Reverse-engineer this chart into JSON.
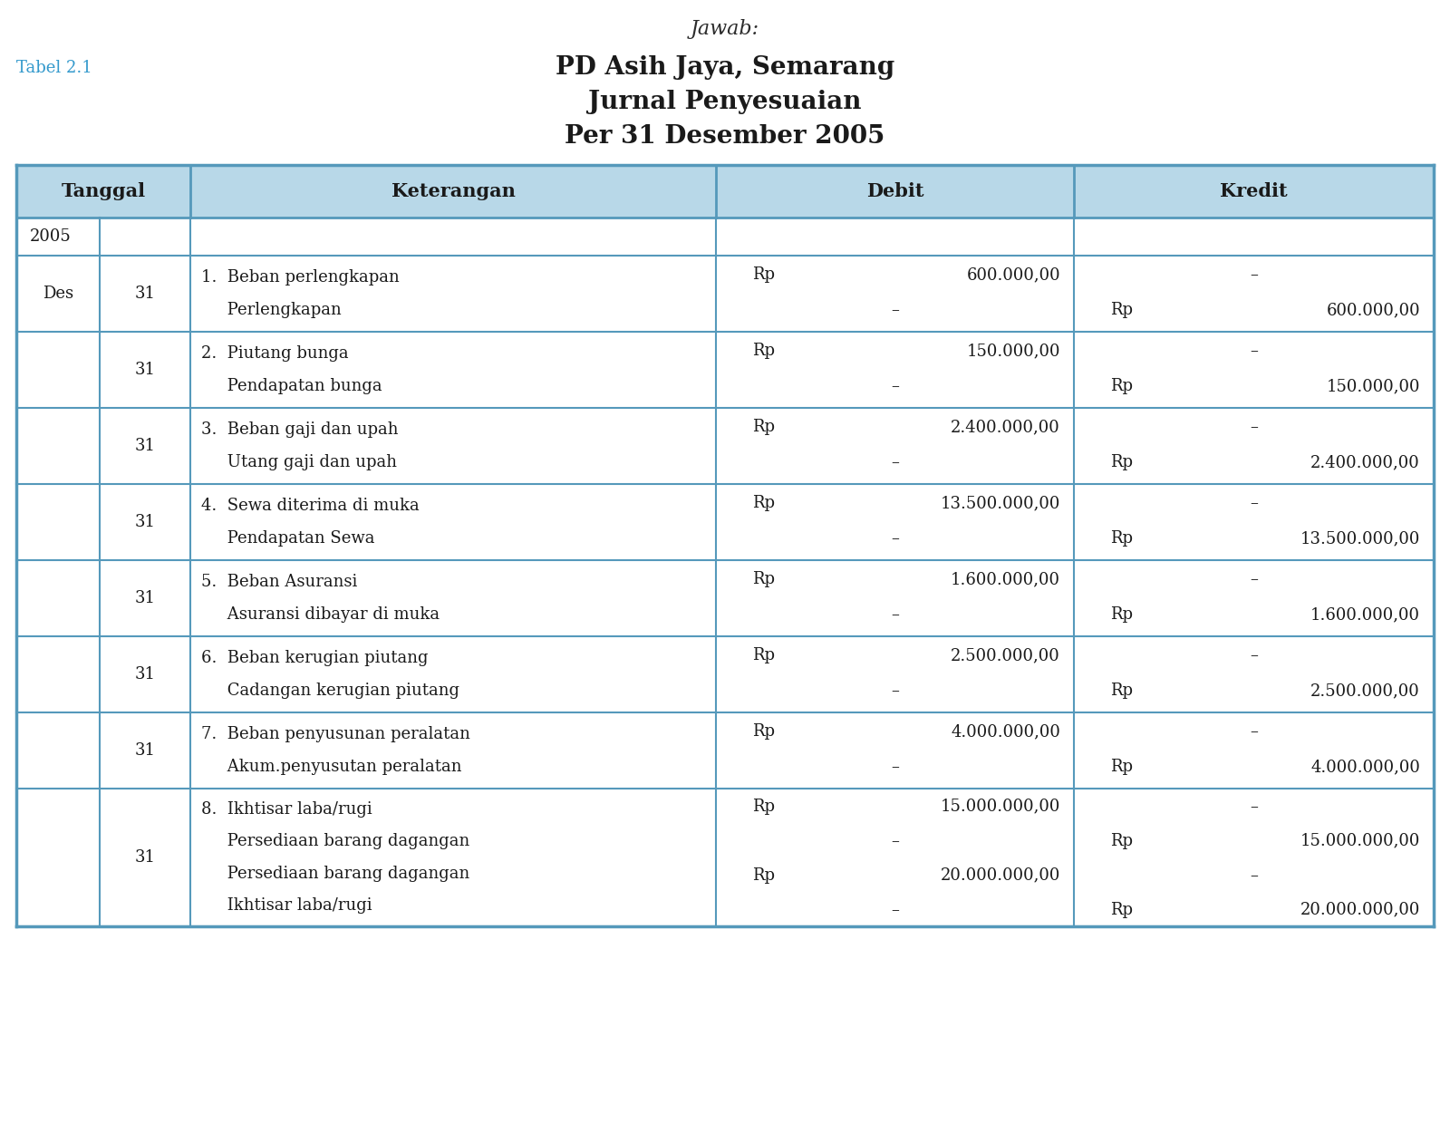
{
  "title_jawab": "Jawab:",
  "tabel_label": "Tabel 2.1",
  "title_company": "PD Asih Jaya, Semarang",
  "title_journal": "Jurnal Penyesuaian",
  "title_date": "Per 31 Desember 2005",
  "header_bg_color": "#b8d8e8",
  "table_border_color": "#5599bb",
  "tabel_label_color": "#3399cc",
  "col_headers": [
    "Tanggal",
    "Keterangan",
    "Debit",
    "Kredit"
  ],
  "rows": [
    {
      "type": "year",
      "year": "2005"
    },
    {
      "type": "data",
      "lines": [
        "1.  Beban perlengkapan",
        "     Perlengkapan"
      ],
      "tanggal1": "Des",
      "tanggal2": "31",
      "debit_lines": [
        "Rp",
        "600.000,00",
        "–"
      ],
      "kredit_lines": [
        "–",
        "Rp",
        "600.000,00"
      ]
    },
    {
      "type": "data",
      "lines": [
        "2.  Piutang bunga",
        "     Pendapatan bunga"
      ],
      "tanggal1": "",
      "tanggal2": "31",
      "debit_lines": [
        "Rp",
        "150.000,00",
        "–"
      ],
      "kredit_lines": [
        "–",
        "Rp",
        "150.000,00"
      ]
    },
    {
      "type": "data",
      "lines": [
        "3.  Beban gaji dan upah",
        "     Utang gaji dan upah"
      ],
      "tanggal1": "",
      "tanggal2": "31",
      "debit_lines": [
        "Rp",
        "2.400.000,00",
        "–"
      ],
      "kredit_lines": [
        "–",
        "Rp",
        "2.400.000,00"
      ]
    },
    {
      "type": "data",
      "lines": [
        "4.  Sewa diterima di muka",
        "     Pendapatan Sewa"
      ],
      "tanggal1": "",
      "tanggal2": "31",
      "debit_lines": [
        "Rp",
        "13.500.000,00",
        "–"
      ],
      "kredit_lines": [
        "–",
        "Rp",
        "13.500.000,00"
      ]
    },
    {
      "type": "data",
      "lines": [
        "5.  Beban Asuransi",
        "     Asuransi dibayar di muka"
      ],
      "tanggal1": "",
      "tanggal2": "31",
      "debit_lines": [
        "Rp",
        "1.600.000,00",
        "–"
      ],
      "kredit_lines": [
        "–",
        "Rp",
        "1.600.000,00"
      ]
    },
    {
      "type": "data",
      "lines": [
        "6.  Beban kerugian piutang",
        "     Cadangan kerugian piutang"
      ],
      "tanggal1": "",
      "tanggal2": "31",
      "debit_lines": [
        "Rp",
        "2.500.000,00",
        "–"
      ],
      "kredit_lines": [
        "–",
        "Rp",
        "2.500.000,00"
      ]
    },
    {
      "type": "data",
      "lines": [
        "7.  Beban penyusunan peralatan",
        "     Akum.penyusutan peralatan"
      ],
      "tanggal1": "",
      "tanggal2": "31",
      "debit_lines": [
        "Rp",
        "4.000.000,00",
        "–"
      ],
      "kredit_lines": [
        "–",
        "Rp",
        "4.000.000,00"
      ]
    },
    {
      "type": "data4",
      "lines": [
        "8.  Ikhtisar laba/rugi",
        "     Persediaan barang dagangan",
        "     Persediaan barang dagangan",
        "     Ikhtisar laba/rugi"
      ],
      "tanggal1": "",
      "tanggal2": "31",
      "debit_lines": [
        "Rp",
        "15.000.000,00",
        "–",
        "Rp",
        "20.000.000,00",
        "–"
      ],
      "kredit_lines": [
        "–",
        "Rp",
        "15.000.000,00",
        "–",
        "Rp",
        "20.000.000,00"
      ]
    }
  ]
}
